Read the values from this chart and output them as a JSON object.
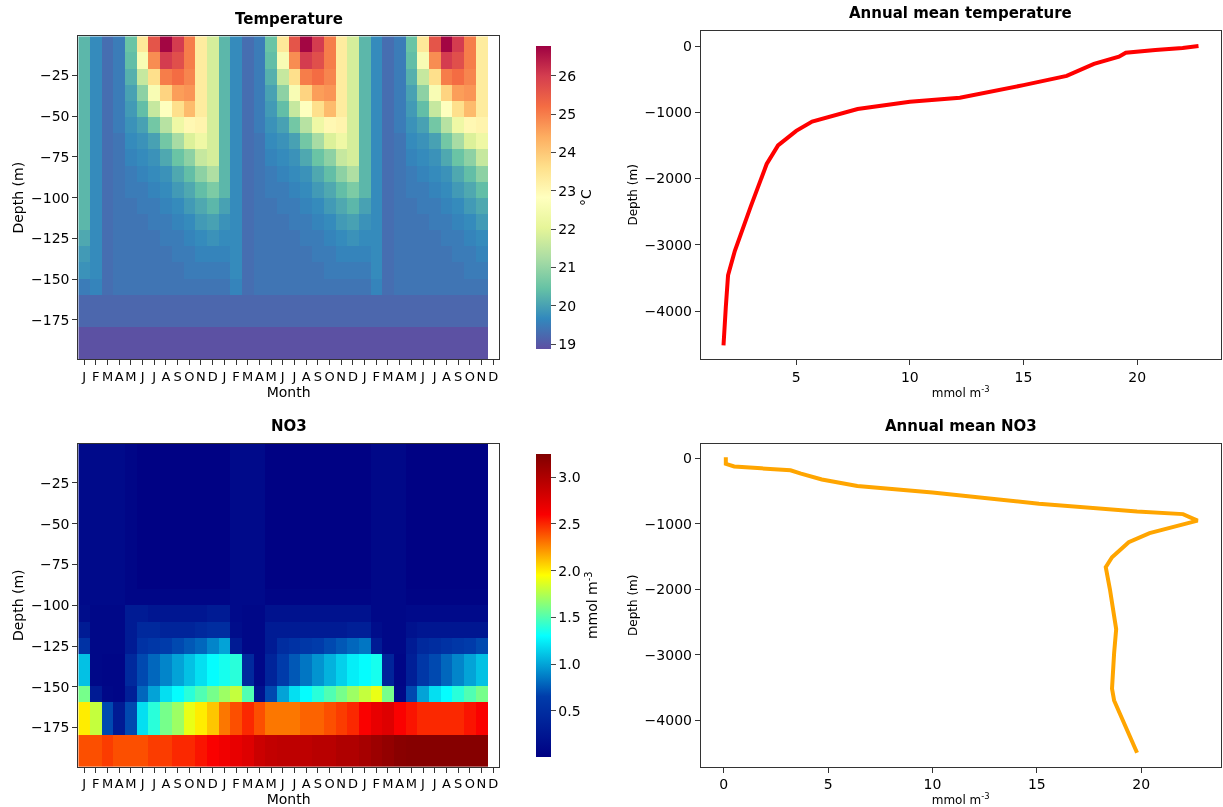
{
  "chart_data": [
    {
      "type": "heatmap",
      "title": "Temperature",
      "xlabel": "Month",
      "ylabel": "Depth (m)",
      "clabel": "°C",
      "categories": [
        "J",
        "F",
        "M",
        "A",
        "M",
        "J",
        "J",
        "A",
        "S",
        "O",
        "N",
        "D",
        "J",
        "F",
        "M",
        "A",
        "M",
        "J",
        "J",
        "A",
        "S",
        "O",
        "N",
        "D",
        "J",
        "F",
        "M",
        "A",
        "M",
        "J",
        "J",
        "A",
        "S",
        "O",
        "N",
        "D"
      ],
      "ylim": [
        -199,
        -1
      ],
      "yticks": [
        -175,
        -150,
        -125,
        -100,
        -75,
        -50,
        -25
      ],
      "clim": [
        18.87,
        26.77
      ],
      "cticks": [
        19,
        20,
        21,
        22,
        23,
        24,
        25,
        26
      ],
      "cells": [
        [
          20.3,
          19.7,
          19.3,
          19.5,
          20.5,
          23.4,
          25.6,
          26.7,
          26.0,
          25.0,
          23.3,
          21.8,
          20.3,
          19.7,
          19.3,
          19.5,
          20.5,
          23.4,
          25.6,
          26.7,
          26.0,
          25.0,
          23.3,
          21.8,
          20.3,
          19.7,
          19.3,
          19.5,
          20.5,
          23.4,
          25.6,
          26.7,
          26.0,
          25.0,
          23.3,
          null
        ],
        [
          20.3,
          19.7,
          19.3,
          19.5,
          20.4,
          22.6,
          24.8,
          26.0,
          25.7,
          25.0,
          23.3,
          21.8,
          20.3,
          19.7,
          19.3,
          19.5,
          20.4,
          22.6,
          24.8,
          26.0,
          25.7,
          25.0,
          23.3,
          21.8,
          20.3,
          19.7,
          19.3,
          19.5,
          20.4,
          22.6,
          24.8,
          26.0,
          25.7,
          25.0,
          23.3,
          null
        ],
        [
          20.3,
          19.7,
          19.3,
          19.5,
          20.2,
          21.6,
          23.6,
          25.0,
          25.2,
          24.9,
          23.3,
          21.8,
          20.3,
          19.7,
          19.3,
          19.5,
          20.2,
          21.6,
          23.6,
          25.0,
          25.2,
          24.9,
          23.3,
          21.8,
          20.3,
          19.7,
          19.3,
          19.5,
          20.2,
          21.6,
          23.6,
          25.0,
          25.2,
          24.9,
          23.3,
          null
        ],
        [
          20.3,
          19.7,
          19.3,
          19.5,
          20.0,
          20.9,
          22.6,
          23.8,
          24.6,
          24.7,
          23.3,
          21.8,
          20.3,
          19.7,
          19.3,
          19.5,
          20.0,
          20.9,
          22.6,
          23.8,
          24.6,
          24.7,
          23.3,
          21.8,
          20.3,
          19.7,
          19.3,
          19.5,
          20.0,
          20.9,
          22.6,
          23.8,
          24.6,
          24.7,
          23.3,
          null
        ],
        [
          20.3,
          19.7,
          19.3,
          19.5,
          19.9,
          20.4,
          21.6,
          22.8,
          23.6,
          24.2,
          23.3,
          21.8,
          20.3,
          19.7,
          19.3,
          19.5,
          19.9,
          20.4,
          21.6,
          22.8,
          23.6,
          24.2,
          23.3,
          21.8,
          20.3,
          19.7,
          19.3,
          19.5,
          19.9,
          20.4,
          21.6,
          22.8,
          23.6,
          24.2,
          23.3,
          null
        ],
        [
          20.3,
          19.7,
          19.3,
          19.5,
          19.8,
          20.0,
          20.6,
          21.4,
          22.3,
          23.0,
          23.1,
          21.8,
          20.3,
          19.7,
          19.3,
          19.5,
          19.8,
          20.0,
          20.6,
          21.4,
          22.3,
          23.0,
          23.1,
          21.8,
          20.3,
          19.7,
          19.3,
          19.5,
          19.8,
          20.0,
          20.6,
          21.4,
          22.3,
          23.0,
          23.1,
          null
        ],
        [
          20.3,
          19.7,
          19.3,
          19.4,
          19.7,
          19.8,
          20.0,
          20.6,
          21.2,
          21.9,
          22.3,
          21.8,
          20.3,
          19.7,
          19.3,
          19.4,
          19.7,
          19.8,
          20.0,
          20.6,
          21.2,
          21.9,
          22.3,
          21.8,
          20.3,
          19.7,
          19.3,
          19.4,
          19.7,
          19.8,
          20.0,
          20.6,
          21.2,
          21.9,
          22.3,
          null
        ],
        [
          20.3,
          19.7,
          19.3,
          19.4,
          19.6,
          19.7,
          19.8,
          20.1,
          20.5,
          20.9,
          21.6,
          21.8,
          20.3,
          19.7,
          19.3,
          19.4,
          19.6,
          19.7,
          19.8,
          20.1,
          20.5,
          20.9,
          21.6,
          21.8,
          20.3,
          19.7,
          19.3,
          19.4,
          19.6,
          19.7,
          19.8,
          20.1,
          20.5,
          20.9,
          21.6,
          null
        ],
        [
          20.3,
          19.7,
          19.3,
          19.4,
          19.5,
          19.6,
          19.7,
          19.8,
          20.1,
          20.4,
          20.9,
          21.3,
          20.3,
          19.7,
          19.3,
          19.4,
          19.5,
          19.6,
          19.7,
          19.8,
          20.1,
          20.4,
          20.9,
          21.3,
          20.3,
          19.7,
          19.3,
          19.4,
          19.5,
          19.6,
          19.7,
          19.8,
          20.1,
          20.4,
          20.9,
          null
        ],
        [
          20.3,
          19.7,
          19.3,
          19.4,
          19.5,
          19.5,
          19.6,
          19.7,
          19.9,
          20.1,
          20.4,
          20.7,
          20.3,
          19.7,
          19.3,
          19.4,
          19.5,
          19.5,
          19.6,
          19.7,
          19.9,
          20.1,
          20.4,
          20.7,
          20.3,
          19.7,
          19.3,
          19.4,
          19.5,
          19.5,
          19.6,
          19.7,
          19.9,
          20.1,
          20.4,
          null
        ],
        [
          20.3,
          19.7,
          19.3,
          19.4,
          19.4,
          19.5,
          19.5,
          19.6,
          19.7,
          19.9,
          20.1,
          20.3,
          20.0,
          19.7,
          19.3,
          19.4,
          19.4,
          19.5,
          19.5,
          19.6,
          19.7,
          19.9,
          20.1,
          20.3,
          20.0,
          19.7,
          19.3,
          19.4,
          19.4,
          19.5,
          19.5,
          19.6,
          19.7,
          19.9,
          20.1,
          null
        ],
        [
          20.3,
          19.7,
          19.3,
          19.4,
          19.4,
          19.4,
          19.5,
          19.5,
          19.6,
          19.7,
          19.9,
          20.0,
          19.8,
          19.7,
          19.3,
          19.4,
          19.4,
          19.4,
          19.5,
          19.5,
          19.6,
          19.7,
          19.9,
          20.0,
          19.8,
          19.7,
          19.3,
          19.4,
          19.4,
          19.4,
          19.5,
          19.5,
          19.6,
          19.7,
          19.9,
          null
        ],
        [
          20.1,
          19.7,
          19.3,
          19.4,
          19.4,
          19.4,
          19.4,
          19.5,
          19.5,
          19.6,
          19.7,
          19.8,
          19.7,
          19.7,
          19.3,
          19.4,
          19.4,
          19.4,
          19.4,
          19.5,
          19.5,
          19.6,
          19.7,
          19.8,
          19.7,
          19.7,
          19.3,
          19.4,
          19.4,
          19.4,
          19.4,
          19.5,
          19.5,
          19.6,
          19.7,
          null
        ],
        [
          19.9,
          19.7,
          19.3,
          19.4,
          19.4,
          19.4,
          19.4,
          19.4,
          19.5,
          19.5,
          19.6,
          19.6,
          19.6,
          19.7,
          19.3,
          19.4,
          19.4,
          19.4,
          19.4,
          19.4,
          19.5,
          19.5,
          19.6,
          19.6,
          19.6,
          19.7,
          19.3,
          19.4,
          19.4,
          19.4,
          19.4,
          19.4,
          19.5,
          19.5,
          19.6,
          null
        ],
        [
          19.8,
          19.7,
          19.3,
          19.4,
          19.4,
          19.4,
          19.4,
          19.4,
          19.4,
          19.5,
          19.5,
          19.5,
          19.5,
          19.7,
          19.3,
          19.4,
          19.4,
          19.4,
          19.4,
          19.4,
          19.4,
          19.5,
          19.5,
          19.5,
          19.5,
          19.7,
          19.3,
          19.4,
          19.4,
          19.4,
          19.4,
          19.4,
          19.4,
          19.5,
          19.5,
          null
        ],
        [
          19.5,
          19.6,
          19.3,
          19.4,
          19.4,
          19.4,
          19.4,
          19.4,
          19.4,
          19.4,
          19.4,
          19.4,
          19.4,
          19.6,
          19.3,
          19.4,
          19.4,
          19.4,
          19.4,
          19.4,
          19.4,
          19.4,
          19.4,
          19.4,
          19.4,
          19.6,
          19.3,
          19.4,
          19.4,
          19.4,
          19.4,
          19.4,
          19.4,
          19.4,
          19.4,
          null
        ],
        [
          19.2,
          19.2,
          19.2,
          19.2,
          19.2,
          19.2,
          19.2,
          19.2,
          19.2,
          19.2,
          19.2,
          19.2,
          19.2,
          19.2,
          19.2,
          19.2,
          19.2,
          19.2,
          19.2,
          19.2,
          19.2,
          19.2,
          19.2,
          19.2,
          19.2,
          19.2,
          19.2,
          19.2,
          19.2,
          19.2,
          19.2,
          19.2,
          19.2,
          19.2,
          19.2,
          null
        ],
        [
          19.2,
          19.2,
          19.2,
          19.2,
          19.2,
          19.2,
          19.2,
          19.2,
          19.2,
          19.2,
          19.2,
          19.2,
          19.2,
          19.2,
          19.2,
          19.2,
          19.2,
          19.2,
          19.2,
          19.2,
          19.2,
          19.2,
          19.2,
          19.2,
          19.2,
          19.2,
          19.2,
          19.2,
          19.2,
          19.2,
          19.2,
          19.2,
          19.2,
          19.2,
          19.2,
          null
        ],
        [
          18.9,
          18.9,
          18.9,
          18.9,
          18.9,
          18.9,
          18.9,
          18.9,
          18.9,
          18.9,
          18.9,
          18.9,
          18.9,
          18.9,
          18.9,
          18.9,
          18.9,
          18.9,
          18.9,
          18.9,
          18.9,
          18.9,
          18.9,
          18.9,
          18.9,
          18.9,
          18.9,
          18.9,
          18.9,
          18.9,
          18.9,
          18.9,
          18.9,
          18.9,
          18.9,
          null
        ],
        [
          18.9,
          18.9,
          18.9,
          18.9,
          18.9,
          18.9,
          18.9,
          18.9,
          18.9,
          18.9,
          18.9,
          18.9,
          18.9,
          18.9,
          18.9,
          18.9,
          18.9,
          18.9,
          18.9,
          18.9,
          18.9,
          18.9,
          18.9,
          18.9,
          18.9,
          18.9,
          18.9,
          18.9,
          18.9,
          18.9,
          18.9,
          18.9,
          18.9,
          18.9,
          18.9,
          null
        ]
      ]
    },
    {
      "type": "line",
      "title": "Annual mean temperature",
      "xlabel": "mmol m$^{-3}$",
      "ylabel": "Depth (m)",
      "xlim": [
        0.8,
        23.67
      ],
      "xticks": [
        5,
        10,
        15,
        20
      ],
      "ylim": [
        -4726,
        232
      ],
      "yticks": [
        0,
        -1000,
        -2000,
        -3000,
        -4000
      ],
      "series": [
        {
          "color": "#ff0000",
          "x": [
            22.7,
            22.0,
            20.8,
            19.5,
            19.2,
            18.1,
            16.9,
            15.0,
            12.2,
            10.0,
            7.7,
            5.7,
            5.0,
            4.2,
            3.7,
            3.0,
            2.3,
            2.0,
            1.9,
            1.8
          ],
          "values": [
            0,
            -30,
            -60,
            -100,
            -160,
            -270,
            -450,
            -590,
            -780,
            -840,
            -950,
            -1140,
            -1280,
            -1500,
            -1780,
            -2420,
            -3090,
            -3460,
            -3950,
            -4520
          ]
        }
      ]
    },
    {
      "type": "heatmap",
      "title": "NO3",
      "xlabel": "Month",
      "ylabel": "Depth (m)",
      "clabel": "mmol m$^{-3}$",
      "categories": [
        "J",
        "F",
        "M",
        "A",
        "M",
        "J",
        "J",
        "A",
        "S",
        "O",
        "N",
        "D",
        "J",
        "F",
        "M",
        "A",
        "M",
        "J",
        "J",
        "A",
        "S",
        "O",
        "N",
        "D",
        "J",
        "F",
        "M",
        "A",
        "M",
        "J",
        "J",
        "A",
        "S",
        "O",
        "N",
        "D"
      ],
      "ylim": [
        -199,
        -1
      ],
      "yticks": [
        -175,
        -150,
        -125,
        -100,
        -75,
        -50,
        -25
      ],
      "clim": [
        0.01,
        3.25
      ],
      "cticks": [
        0.5,
        {
          "value": 1,
          "label": "1.0"
        },
        1.5,
        {
          "value": 2,
          "label": "2.0"
        },
        2.5,
        {
          "value": 3,
          "label": "3.0"
        }
      ],
      "cells": [
        [
          0.12,
          0.12,
          0.12,
          0.12,
          0.08,
          0.03,
          0.03,
          0.03,
          0.03,
          0.03,
          0.03,
          0.03,
          0.03,
          0.12,
          0.12,
          0.12,
          0.03,
          0.03,
          0.03,
          0.03,
          0.03,
          0.03,
          0.03,
          0.03,
          0.03,
          0.1,
          0.1,
          0.1,
          0.03,
          0.03,
          0.03,
          0.03,
          0.03,
          0.03,
          0.03,
          null
        ],
        [
          0.12,
          0.12,
          0.12,
          0.12,
          0.08,
          0.03,
          0.03,
          0.03,
          0.03,
          0.03,
          0.03,
          0.03,
          0.03,
          0.12,
          0.12,
          0.12,
          0.03,
          0.03,
          0.03,
          0.03,
          0.03,
          0.03,
          0.03,
          0.03,
          0.03,
          0.1,
          0.1,
          0.1,
          0.03,
          0.03,
          0.03,
          0.03,
          0.03,
          0.03,
          0.03,
          null
        ],
        [
          0.12,
          0.12,
          0.12,
          0.12,
          0.08,
          0.03,
          0.03,
          0.03,
          0.03,
          0.03,
          0.03,
          0.03,
          0.03,
          0.12,
          0.12,
          0.12,
          0.03,
          0.03,
          0.03,
          0.03,
          0.03,
          0.03,
          0.03,
          0.03,
          0.03,
          0.1,
          0.1,
          0.1,
          0.03,
          0.03,
          0.03,
          0.03,
          0.03,
          0.03,
          0.03,
          null
        ],
        [
          0.12,
          0.12,
          0.12,
          0.12,
          0.08,
          0.03,
          0.03,
          0.03,
          0.03,
          0.03,
          0.03,
          0.03,
          0.03,
          0.12,
          0.12,
          0.12,
          0.03,
          0.03,
          0.03,
          0.03,
          0.03,
          0.03,
          0.03,
          0.03,
          0.03,
          0.1,
          0.1,
          0.1,
          0.03,
          0.03,
          0.03,
          0.03,
          0.03,
          0.03,
          0.03,
          null
        ],
        [
          0.12,
          0.12,
          0.12,
          0.12,
          0.08,
          0.03,
          0.03,
          0.03,
          0.03,
          0.03,
          0.03,
          0.03,
          0.03,
          0.12,
          0.12,
          0.12,
          0.03,
          0.03,
          0.03,
          0.03,
          0.03,
          0.03,
          0.03,
          0.03,
          0.03,
          0.1,
          0.1,
          0.1,
          0.03,
          0.03,
          0.03,
          0.03,
          0.03,
          0.03,
          0.03,
          null
        ],
        [
          0.12,
          0.12,
          0.12,
          0.12,
          0.08,
          0.03,
          0.03,
          0.03,
          0.03,
          0.03,
          0.03,
          0.03,
          0.03,
          0.12,
          0.12,
          0.12,
          0.03,
          0.03,
          0.03,
          0.03,
          0.03,
          0.03,
          0.03,
          0.03,
          0.03,
          0.1,
          0.1,
          0.1,
          0.03,
          0.03,
          0.03,
          0.03,
          0.03,
          0.03,
          0.03,
          null
        ],
        [
          0.12,
          0.12,
          0.12,
          0.12,
          0.08,
          0.03,
          0.03,
          0.03,
          0.03,
          0.03,
          0.03,
          0.03,
          0.03,
          0.12,
          0.12,
          0.12,
          0.03,
          0.03,
          0.03,
          0.03,
          0.03,
          0.03,
          0.03,
          0.03,
          0.03,
          0.1,
          0.1,
          0.1,
          0.03,
          0.03,
          0.03,
          0.03,
          0.03,
          0.03,
          0.03,
          null
        ],
        [
          0.12,
          0.12,
          0.12,
          0.12,
          0.08,
          0.03,
          0.03,
          0.03,
          0.03,
          0.03,
          0.03,
          0.03,
          0.03,
          0.12,
          0.12,
          0.12,
          0.03,
          0.03,
          0.03,
          0.03,
          0.03,
          0.03,
          0.03,
          0.03,
          0.03,
          0.1,
          0.1,
          0.1,
          0.03,
          0.03,
          0.03,
          0.03,
          0.03,
          0.03,
          0.03,
          null
        ],
        [
          0.12,
          0.12,
          0.12,
          0.12,
          0.08,
          0.03,
          0.03,
          0.03,
          0.03,
          0.03,
          0.03,
          0.03,
          0.03,
          0.12,
          0.12,
          0.12,
          0.03,
          0.03,
          0.03,
          0.03,
          0.03,
          0.03,
          0.03,
          0.03,
          0.03,
          0.1,
          0.1,
          0.1,
          0.03,
          0.03,
          0.03,
          0.03,
          0.03,
          0.03,
          0.03,
          null
        ],
        [
          0.12,
          0.12,
          0.12,
          0.12,
          0.08,
          0.08,
          0.08,
          0.08,
          0.08,
          0.08,
          0.08,
          0.08,
          0.08,
          0.12,
          0.12,
          0.12,
          0.06,
          0.06,
          0.06,
          0.06,
          0.06,
          0.06,
          0.06,
          0.06,
          0.06,
          0.1,
          0.1,
          0.1,
          0.05,
          0.05,
          0.05,
          0.05,
          0.05,
          0.05,
          0.05,
          null
        ],
        [
          0.15,
          0.1,
          0.1,
          0.1,
          0.3,
          0.3,
          0.25,
          0.25,
          0.25,
          0.25,
          0.25,
          0.3,
          0.3,
          0.12,
          0.1,
          0.1,
          0.2,
          0.2,
          0.2,
          0.2,
          0.2,
          0.2,
          0.2,
          0.2,
          0.2,
          0.1,
          0.1,
          0.1,
          0.12,
          0.12,
          0.12,
          0.12,
          0.12,
          0.12,
          0.12,
          null
        ],
        [
          0.3,
          0.1,
          0.1,
          0.1,
          0.3,
          0.45,
          0.45,
          0.4,
          0.4,
          0.4,
          0.45,
          0.5,
          0.5,
          0.15,
          0.1,
          0.1,
          0.3,
          0.3,
          0.3,
          0.3,
          0.3,
          0.3,
          0.3,
          0.35,
          0.35,
          0.15,
          0.1,
          0.1,
          0.2,
          0.25,
          0.25,
          0.25,
          0.25,
          0.25,
          0.25,
          null
        ],
        [
          0.55,
          0.1,
          0.1,
          0.1,
          0.3,
          0.55,
          0.6,
          0.65,
          0.7,
          0.75,
          0.8,
          0.9,
          1.0,
          0.3,
          0.1,
          0.1,
          0.3,
          0.5,
          0.55,
          0.6,
          0.65,
          0.7,
          0.75,
          0.8,
          0.85,
          0.3,
          0.1,
          0.1,
          0.3,
          0.45,
          0.5,
          0.55,
          0.6,
          0.65,
          0.7,
          null
        ],
        [
          1.1,
          0.1,
          0.08,
          0.08,
          0.45,
          0.7,
          0.8,
          0.9,
          1.0,
          1.1,
          1.2,
          1.3,
          1.35,
          1.4,
          0.45,
          0.1,
          0.4,
          0.65,
          0.75,
          0.85,
          0.95,
          1.05,
          1.15,
          1.25,
          1.3,
          1.35,
          0.4,
          0.08,
          0.35,
          0.6,
          0.7,
          0.8,
          0.9,
          1.0,
          1.1,
          null
        ],
        [
          1.1,
          0.1,
          0.08,
          0.08,
          0.45,
          0.7,
          0.8,
          0.9,
          1.0,
          1.1,
          1.2,
          1.3,
          1.35,
          1.4,
          0.45,
          0.1,
          0.4,
          0.65,
          0.75,
          0.85,
          0.95,
          1.05,
          1.15,
          1.25,
          1.3,
          1.35,
          0.4,
          0.08,
          0.35,
          0.6,
          0.7,
          0.8,
          0.9,
          1.0,
          1.1,
          null
        ],
        [
          1.6,
          0.3,
          0.1,
          0.08,
          0.35,
          0.8,
          1.0,
          1.2,
          1.3,
          1.4,
          1.5,
          1.6,
          1.7,
          1.8,
          1.5,
          0.2,
          0.7,
          1.0,
          1.2,
          1.3,
          1.4,
          1.5,
          1.6,
          1.7,
          1.8,
          1.9,
          1.6,
          0.1,
          0.7,
          1.0,
          1.2,
          1.3,
          1.4,
          1.5,
          1.6,
          null
        ],
        [
          2.0,
          1.8,
          0.7,
          0.3,
          0.7,
          1.2,
          1.4,
          1.6,
          1.7,
          1.9,
          2.0,
          2.1,
          2.3,
          2.4,
          2.5,
          2.4,
          2.3,
          2.3,
          2.3,
          2.35,
          2.35,
          2.4,
          2.45,
          2.5,
          2.6,
          2.7,
          2.75,
          2.6,
          2.55,
          2.5,
          2.5,
          2.5,
          2.5,
          2.55,
          2.6,
          null
        ],
        [
          2.0,
          1.8,
          0.7,
          0.3,
          0.7,
          1.2,
          1.4,
          1.6,
          1.7,
          1.9,
          2.0,
          2.1,
          2.3,
          2.4,
          2.5,
          2.4,
          2.3,
          2.3,
          2.3,
          2.35,
          2.35,
          2.4,
          2.45,
          2.5,
          2.6,
          2.7,
          2.75,
          2.6,
          2.55,
          2.5,
          2.5,
          2.5,
          2.5,
          2.55,
          2.6,
          null
        ],
        [
          2.4,
          2.4,
          2.45,
          2.4,
          2.4,
          2.4,
          2.45,
          2.45,
          2.5,
          2.5,
          2.55,
          2.6,
          2.65,
          2.7,
          2.75,
          2.85,
          2.9,
          2.92,
          2.92,
          2.92,
          2.95,
          2.95,
          3.0,
          3.0,
          3.05,
          3.1,
          3.15,
          3.2,
          3.22,
          3.22,
          3.22,
          3.22,
          3.22,
          3.22,
          3.22,
          null
        ],
        [
          2.4,
          2.4,
          2.45,
          2.4,
          2.4,
          2.4,
          2.45,
          2.45,
          2.5,
          2.5,
          2.55,
          2.6,
          2.65,
          2.7,
          2.75,
          2.85,
          2.9,
          2.92,
          2.92,
          2.92,
          2.95,
          2.95,
          3.0,
          3.0,
          3.05,
          3.1,
          3.15,
          3.2,
          3.22,
          3.22,
          3.22,
          3.22,
          3.22,
          3.22,
          3.22,
          null
        ]
      ]
    },
    {
      "type": "line",
      "title": "Annual mean NO3",
      "xlabel": "mmol m$^{-3}$",
      "ylabel": "Depth (m)",
      "xlim": [
        -1.1,
        23.8
      ],
      "xticks": [
        0,
        5,
        10,
        15,
        20
      ],
      "ylim": [
        -4713,
        225
      ],
      "yticks": [
        0,
        -1000,
        -2000,
        -3000,
        -4000
      ],
      "series": [
        {
          "color": "#ffa500",
          "x": [
            0.1,
            0.1,
            0.5,
            1.8,
            3.2,
            3.7,
            4.7,
            6.4,
            10.0,
            15.1,
            19.8,
            22.0,
            22.7,
            20.4,
            19.4,
            18.6,
            18.3,
            18.5,
            18.8,
            18.7,
            18.6,
            18.7,
            19.8
          ],
          "values": [
            20,
            -80,
            -120,
            -150,
            -180,
            -230,
            -320,
            -420,
            -520,
            -690,
            -810,
            -850,
            -950,
            -1140,
            -1280,
            -1510,
            -1660,
            -2000,
            -2610,
            -2980,
            -3520,
            -3700,
            -4500
          ]
        }
      ]
    }
  ]
}
